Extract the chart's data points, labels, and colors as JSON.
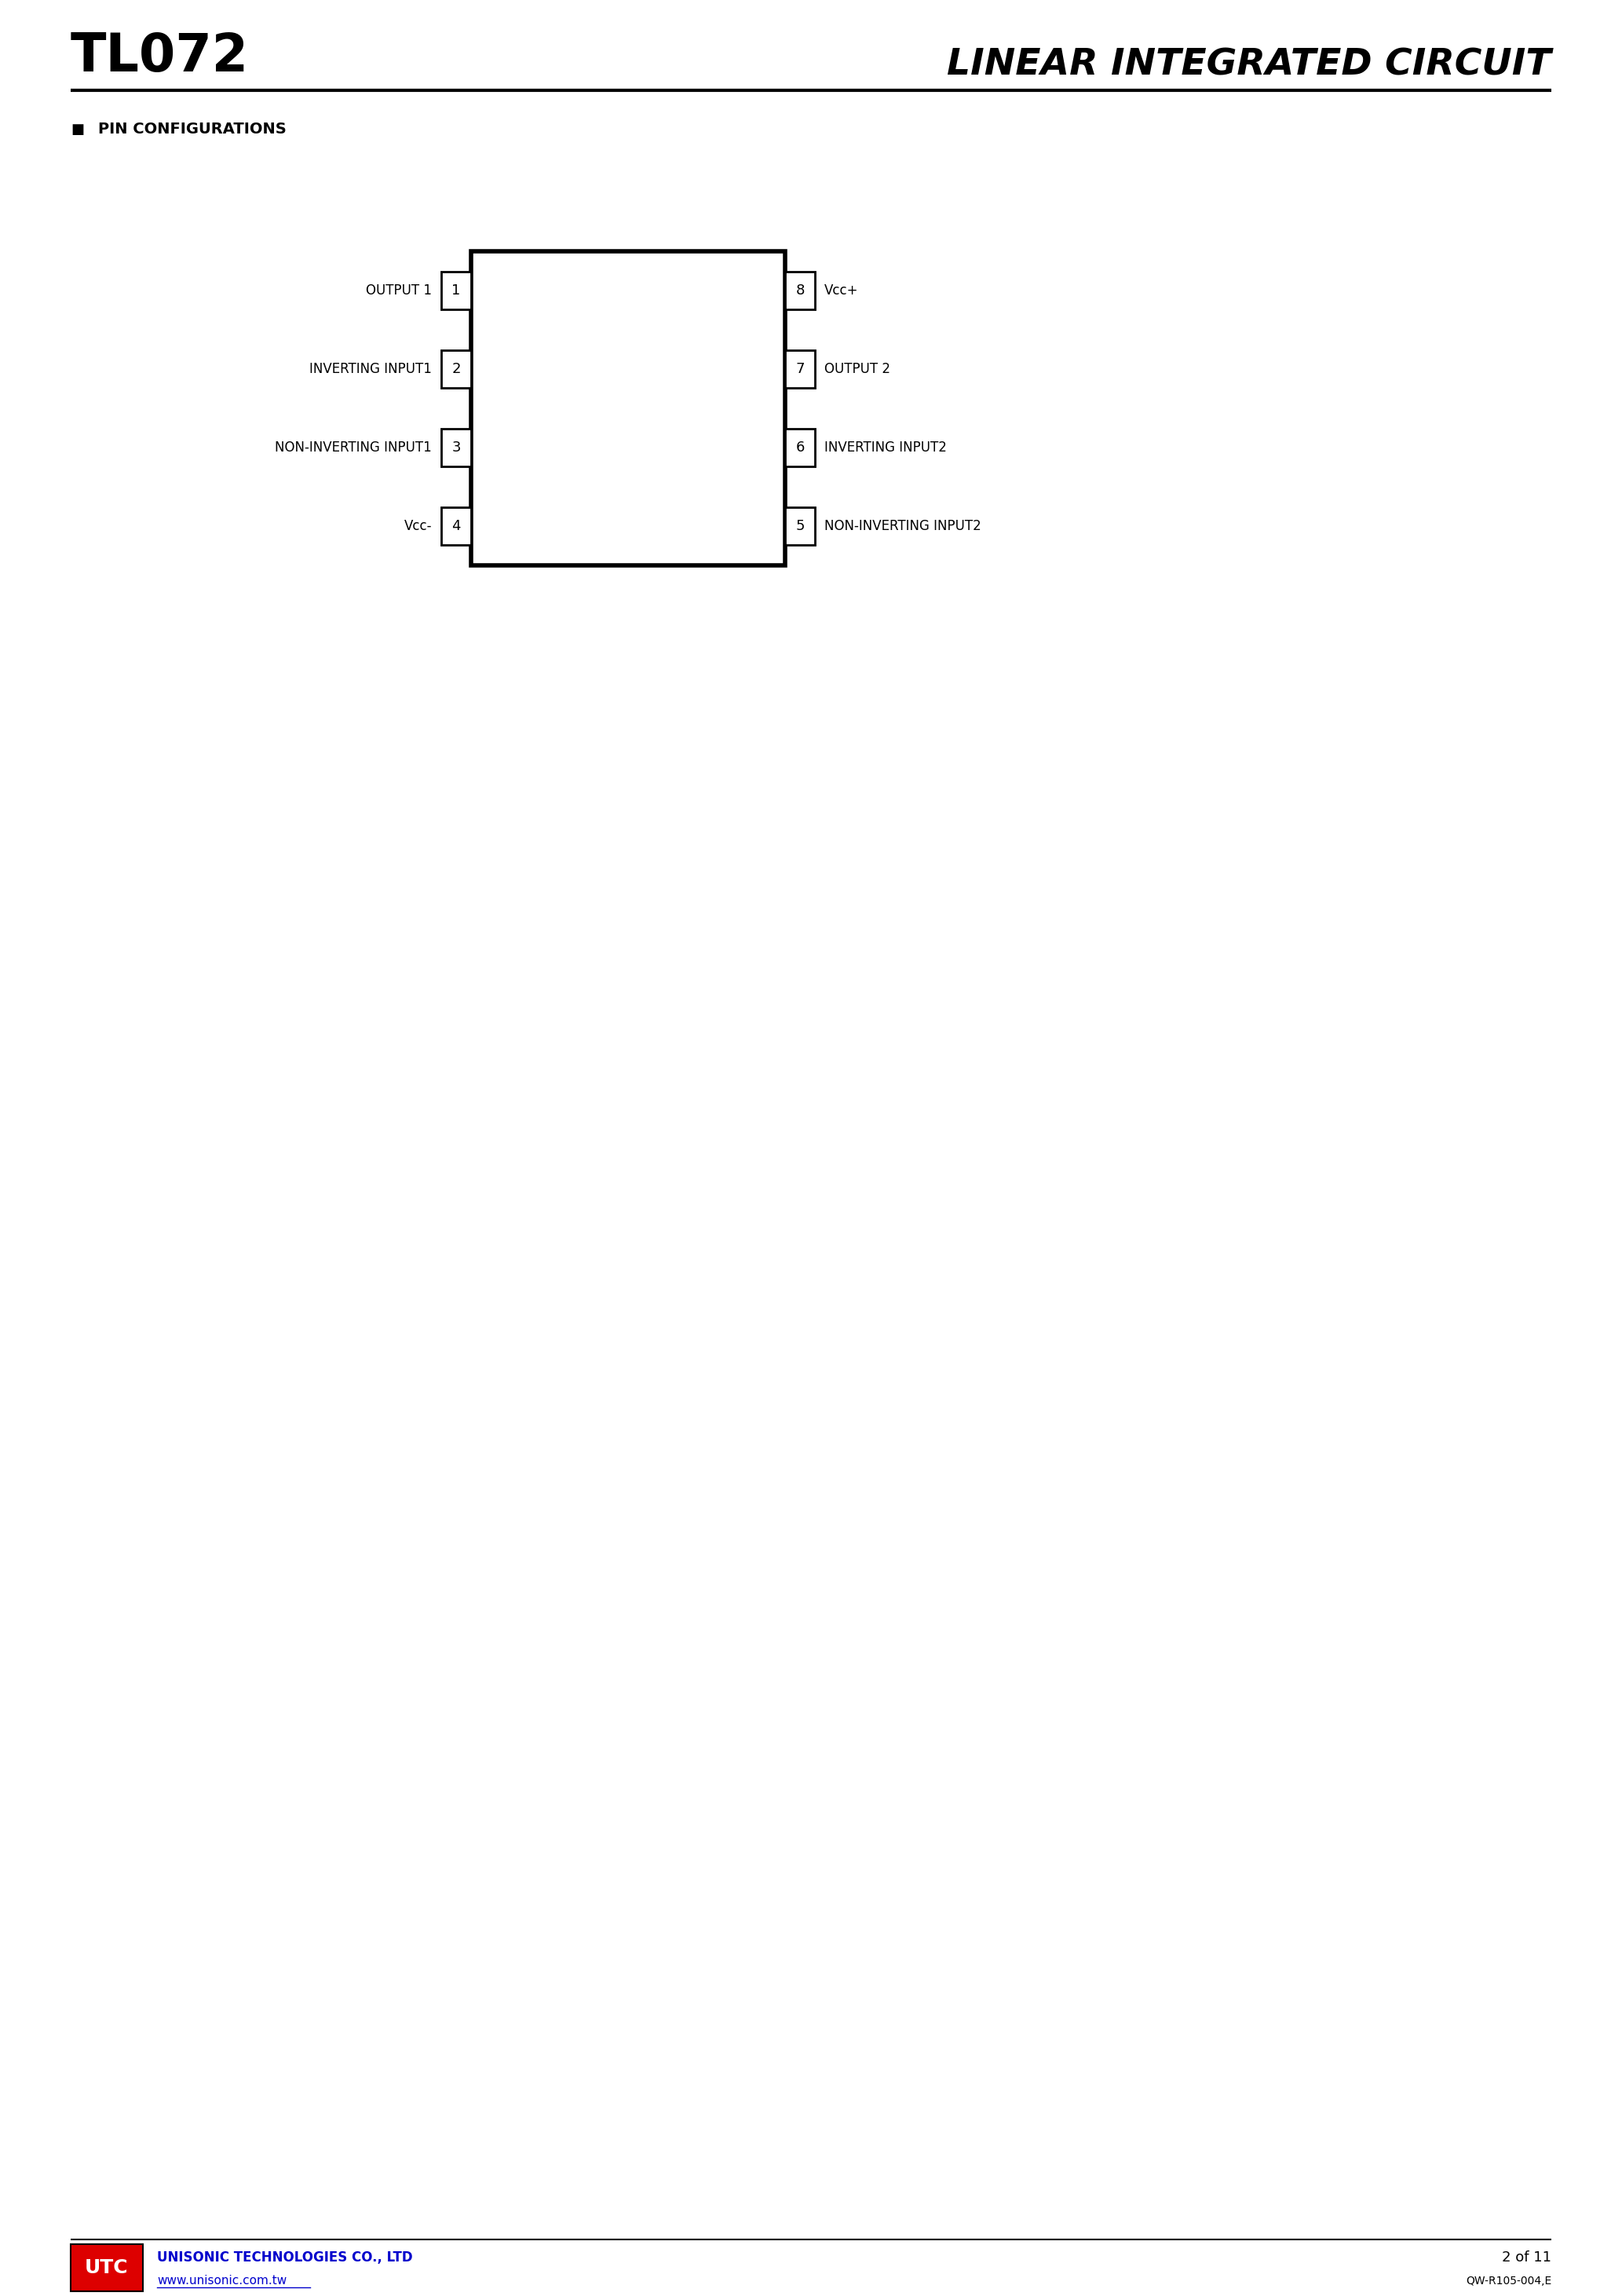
{
  "title_left": "TL072",
  "title_right": "LINEAR INTEGRATED CIRCUIT",
  "section_title": "PIN CONFIGURATIONS",
  "page_bg": "#ffffff",
  "title_color": "#000000",
  "title_right_color": "#000000",
  "section_color": "#000000",
  "pins_left": [
    {
      "num": "1",
      "label": "OUTPUT 1"
    },
    {
      "num": "2",
      "label": "INVERTING INPUT1"
    },
    {
      "num": "3",
      "label": "NON-INVERTING INPUT1"
    },
    {
      "num": "4",
      "label": "Vcc-"
    }
  ],
  "pins_right": [
    {
      "num": "8",
      "label": "Vcc+"
    },
    {
      "num": "7",
      "label": "OUTPUT 2"
    },
    {
      "num": "6",
      "label": "INVERTING INPUT2"
    },
    {
      "num": "5",
      "label": "NON-INVERTING INPUT2"
    }
  ],
  "footer_company": "UNISONIC TECHNOLOGIES CO., LTD",
  "footer_website": "www.unisonic.com.tw",
  "footer_page": "2 of 11",
  "footer_doc": "QW-R105-004,E",
  "footer_utc_bg": "#dd0000",
  "footer_utc_text": "UTC",
  "footer_company_color": "#0000cc",
  "footer_website_color": "#0000cc",
  "line_color": "#000000"
}
